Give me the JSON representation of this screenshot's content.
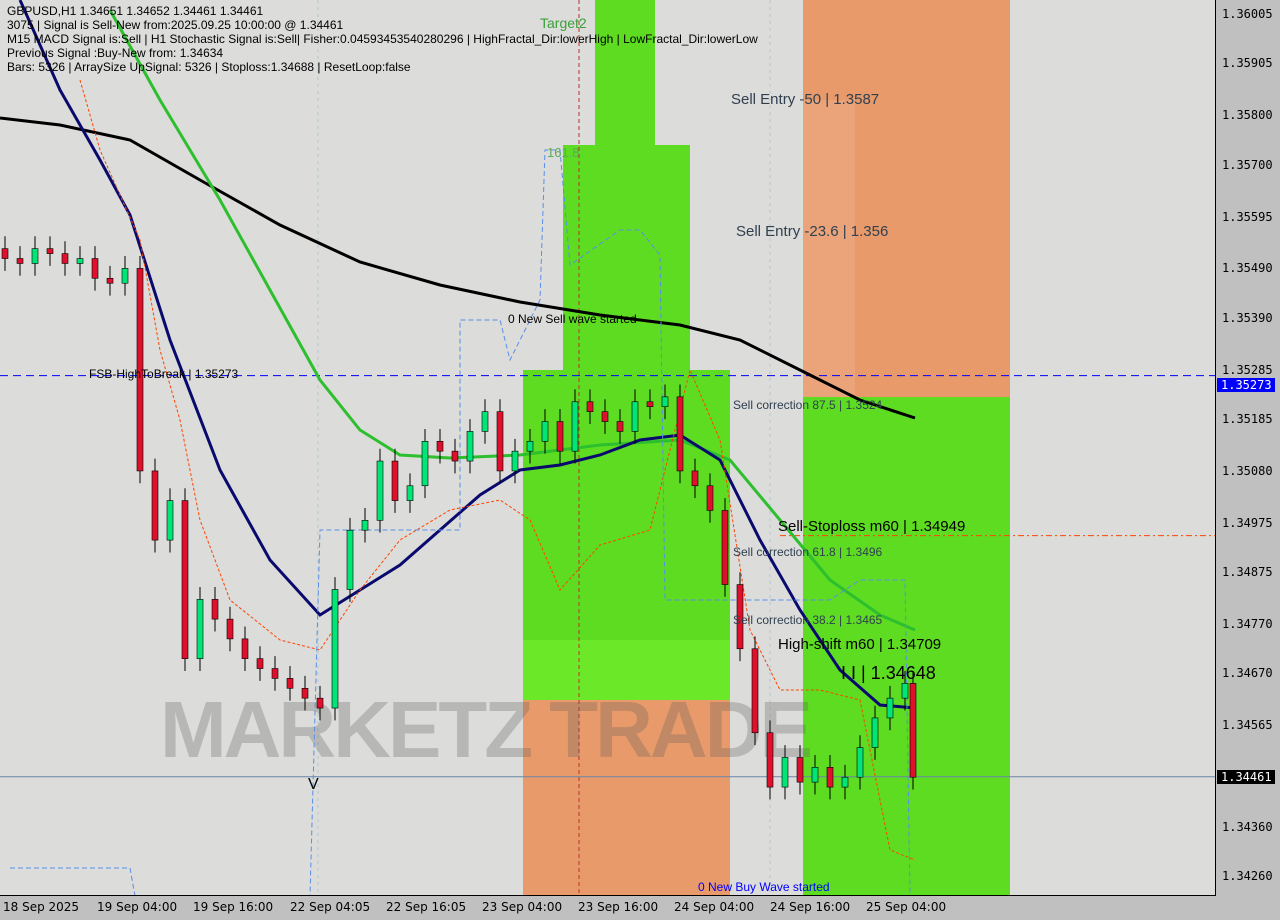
{
  "header": {
    "line1": "GBPUSD,H1  1.34651 1.34652 1.34461 1.34461",
    "line2": "3075 | Signal is Sell-New from:2025.09.25 10:00:00 @ 1.34461",
    "line3": "M15 MACD Signal is:Sell | H1 Stochastic Signal is:Sell| Fisher:0.04593453540280296 | HighFractal_Dir:lowerHigh | LowFractal_Dir:lowerLow",
    "line4": "Previous Signal :Buy-New from: 1.34634",
    "line5": "Bars: 5326 | ArraySize UpSignal: 5326 | Stoploss:1.34688 | ResetLoop:false"
  },
  "labels": {
    "target2": "Target2",
    "fib": "161.8",
    "sell_entry_50": "Sell Entry -50 | 1.3587",
    "sell_entry_236": "Sell Entry -23.6 | 1.356",
    "new_sell_wave": "0 New Sell wave started",
    "fsb": "FSB-HighToBreak | 1.35273",
    "sell_corr_875": "Sell correction 87.5 | 1.3524",
    "sell_corr_618": "Sell correction 61.8 | 1.3496",
    "sell_stoploss": "Sell-Stoploss m60 | 1.34949",
    "sell_corr_382": "Sell correction 38.2 | 1.3465",
    "high_shift": "High-shift m60 | 1.34709",
    "level_ii": "I I | 1.34648",
    "new_buy_wave": "0 New Buy Wave started",
    "v_mark": "V",
    "watermark": "MARKETZ TRADE"
  },
  "colors": {
    "bull": "#00e676",
    "bear": "#e0102c",
    "green_zone": "#5ddc22",
    "orange_zone": "#e89a6a",
    "ma_black": "#000000",
    "ma_navy": "#0a0a6e",
    "ma_green": "#2dbf2d",
    "highline": "#0000ff",
    "bid": "#000000"
  },
  "chart_data": {
    "type": "candlestick",
    "symbol": "GBPUSD",
    "timeframe": "H1",
    "ylim": [
      1.3421,
      1.3605
    ],
    "yticks": [
      "1.36005",
      "1.35905",
      "1.35800",
      "1.35700",
      "1.35595",
      "1.35490",
      "1.35390",
      "1.35285",
      "1.35185",
      "1.35080",
      "1.34975",
      "1.34875",
      "1.34770",
      "1.34670",
      "1.34565",
      "1.34360",
      "1.34260"
    ],
    "xticks": [
      "18 Sep 2025",
      "19 Sep 04:00",
      "19 Sep 16:00",
      "22 Sep 04:05",
      "22 Sep 16:05",
      "23 Sep 04:00",
      "23 Sep 16:00",
      "24 Sep 04:00",
      "24 Sep 16:00",
      "25 Sep 04:00"
    ],
    "closes": [
      1.3551,
      1.355,
      1.3553,
      1.3552,
      1.355,
      1.3551,
      1.3547,
      1.3546,
      1.3549,
      1.3508,
      1.3494,
      1.3502,
      1.347,
      1.3482,
      1.3478,
      1.3474,
      1.347,
      1.3468,
      1.3466,
      1.3464,
      1.3462,
      1.346,
      1.3484,
      1.3496,
      1.3498,
      1.351,
      1.3502,
      1.3505,
      1.3514,
      1.3512,
      1.351,
      1.3516,
      1.352,
      1.3508,
      1.3512,
      1.3514,
      1.3518,
      1.3512,
      1.3522,
      1.352,
      1.3518,
      1.3516,
      1.3522,
      1.3521,
      1.3523,
      1.3508,
      1.3505,
      1.35,
      1.3485,
      1.3472,
      1.3455,
      1.3444,
      1.345,
      1.3445,
      1.3448,
      1.3444,
      1.3446,
      1.3452,
      1.3458,
      1.3462,
      1.3465,
      1.3446
    ],
    "high_to_break": 1.35273,
    "high_to_break_label": "1.35273",
    "stoploss_level": 1.34949,
    "bid": 1.34461,
    "bid_label": "1.34461"
  }
}
